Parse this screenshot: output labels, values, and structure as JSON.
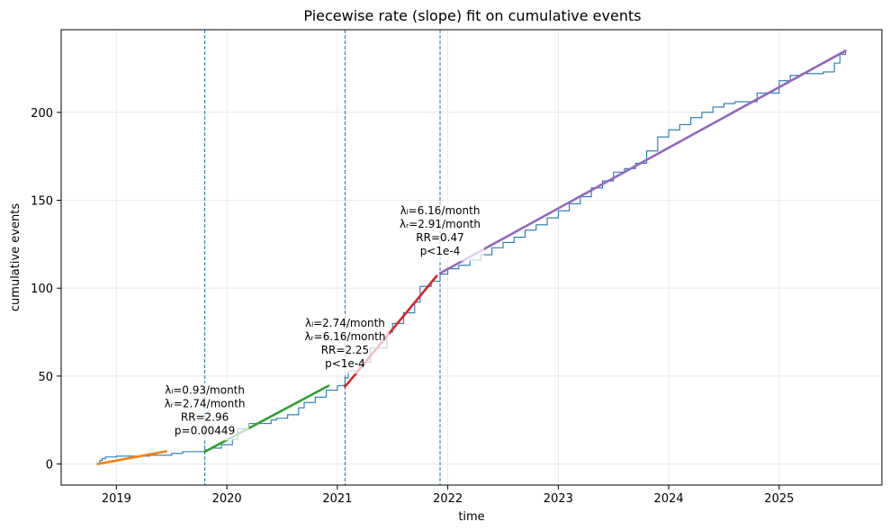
{
  "chart_data": {
    "type": "line",
    "title": "Piecewise rate (slope) fit on cumulative events",
    "xlabel": "time",
    "ylabel": "cumulative events",
    "xlim": [
      2018.5,
      2025.93
    ],
    "ylim": [
      -12,
      247
    ],
    "x_ticks": [
      2019,
      2020,
      2021,
      2022,
      2023,
      2024,
      2025
    ],
    "y_ticks": [
      0,
      50,
      100,
      150,
      200
    ],
    "grid": true,
    "colors": {
      "cumulative": "#1f77b4",
      "changepoint": "#1f77b4",
      "segments": [
        "#ff7f0e",
        "#2ca02c",
        "#d62728",
        "#9467bd"
      ]
    },
    "changepoints": [
      2019.8,
      2021.07,
      2021.93
    ],
    "series": [
      {
        "type": "step",
        "points": [
          [
            2018.83,
            0
          ],
          [
            2018.85,
            2
          ],
          [
            2018.87,
            3
          ],
          [
            2018.9,
            4
          ],
          [
            2019.0,
            4.5
          ],
          [
            2019.3,
            5
          ],
          [
            2019.5,
            6
          ],
          [
            2019.6,
            7
          ],
          [
            2019.8,
            8
          ],
          [
            2019.85,
            9
          ],
          [
            2019.95,
            11
          ],
          [
            2020.05,
            14
          ],
          [
            2020.1,
            20
          ],
          [
            2020.2,
            23
          ],
          [
            2020.4,
            25
          ],
          [
            2020.45,
            26
          ],
          [
            2020.55,
            28
          ],
          [
            2020.65,
            32
          ],
          [
            2020.7,
            35
          ],
          [
            2020.8,
            38
          ],
          [
            2020.9,
            42
          ],
          [
            2021.0,
            44.5
          ],
          [
            2021.06,
            45
          ],
          [
            2021.07,
            49
          ],
          [
            2021.1,
            53
          ],
          [
            2021.2,
            58
          ],
          [
            2021.3,
            66
          ],
          [
            2021.45,
            75
          ],
          [
            2021.5,
            80
          ],
          [
            2021.6,
            86
          ],
          [
            2021.7,
            92
          ],
          [
            2021.75,
            101
          ],
          [
            2021.85,
            104
          ],
          [
            2021.93,
            108
          ],
          [
            2022.0,
            111
          ],
          [
            2022.1,
            113
          ],
          [
            2022.2,
            116
          ],
          [
            2022.3,
            119
          ],
          [
            2022.4,
            123
          ],
          [
            2022.5,
            126
          ],
          [
            2022.6,
            129
          ],
          [
            2022.7,
            133
          ],
          [
            2022.8,
            136
          ],
          [
            2022.9,
            140
          ],
          [
            2023.0,
            144
          ],
          [
            2023.1,
            148
          ],
          [
            2023.2,
            152
          ],
          [
            2023.3,
            157
          ],
          [
            2023.4,
            161
          ],
          [
            2023.5,
            166
          ],
          [
            2023.6,
            168
          ],
          [
            2023.7,
            171
          ],
          [
            2023.8,
            178
          ],
          [
            2023.9,
            186
          ],
          [
            2024.0,
            190
          ],
          [
            2024.1,
            193
          ],
          [
            2024.2,
            197
          ],
          [
            2024.3,
            200
          ],
          [
            2024.4,
            203
          ],
          [
            2024.5,
            205
          ],
          [
            2024.6,
            206
          ],
          [
            2024.8,
            211
          ],
          [
            2025.0,
            218
          ],
          [
            2025.1,
            221
          ],
          [
            2025.2,
            222
          ],
          [
            2025.4,
            223
          ],
          [
            2025.5,
            228
          ],
          [
            2025.55,
            233
          ],
          [
            2025.6,
            235
          ]
        ]
      },
      {
        "type": "fit",
        "color_index": 0,
        "x": [
          2018.83,
          2019.45
        ],
        "y": [
          0,
          7.2
        ]
      },
      {
        "type": "fit",
        "color_index": 1,
        "x": [
          2019.8,
          2020.92
        ],
        "y": [
          7,
          44.5
        ]
      },
      {
        "type": "fit",
        "color_index": 2,
        "x": [
          2021.07,
          2021.9
        ],
        "y": [
          44,
          107
        ]
      },
      {
        "type": "fit",
        "color_index": 3,
        "x": [
          2021.93,
          2025.6
        ],
        "y": [
          108.5,
          235
        ]
      }
    ],
    "annotations": [
      {
        "x": 2019.8,
        "y": 40,
        "lines": [
          "λₗ=0.93/month",
          "λᵣ=2.74/month",
          "RR=2.96",
          "p=0.00449"
        ]
      },
      {
        "x": 2021.07,
        "y": 78,
        "lines": [
          "λₗ=2.74/month",
          "λᵣ=6.16/month",
          "RR=2.25",
          "p<1e-4"
        ]
      },
      {
        "x": 2021.93,
        "y": 142,
        "lines": [
          "λₗ=6.16/month",
          "λᵣ=2.91/month",
          "RR=0.47",
          "p<1e-4"
        ]
      }
    ]
  }
}
